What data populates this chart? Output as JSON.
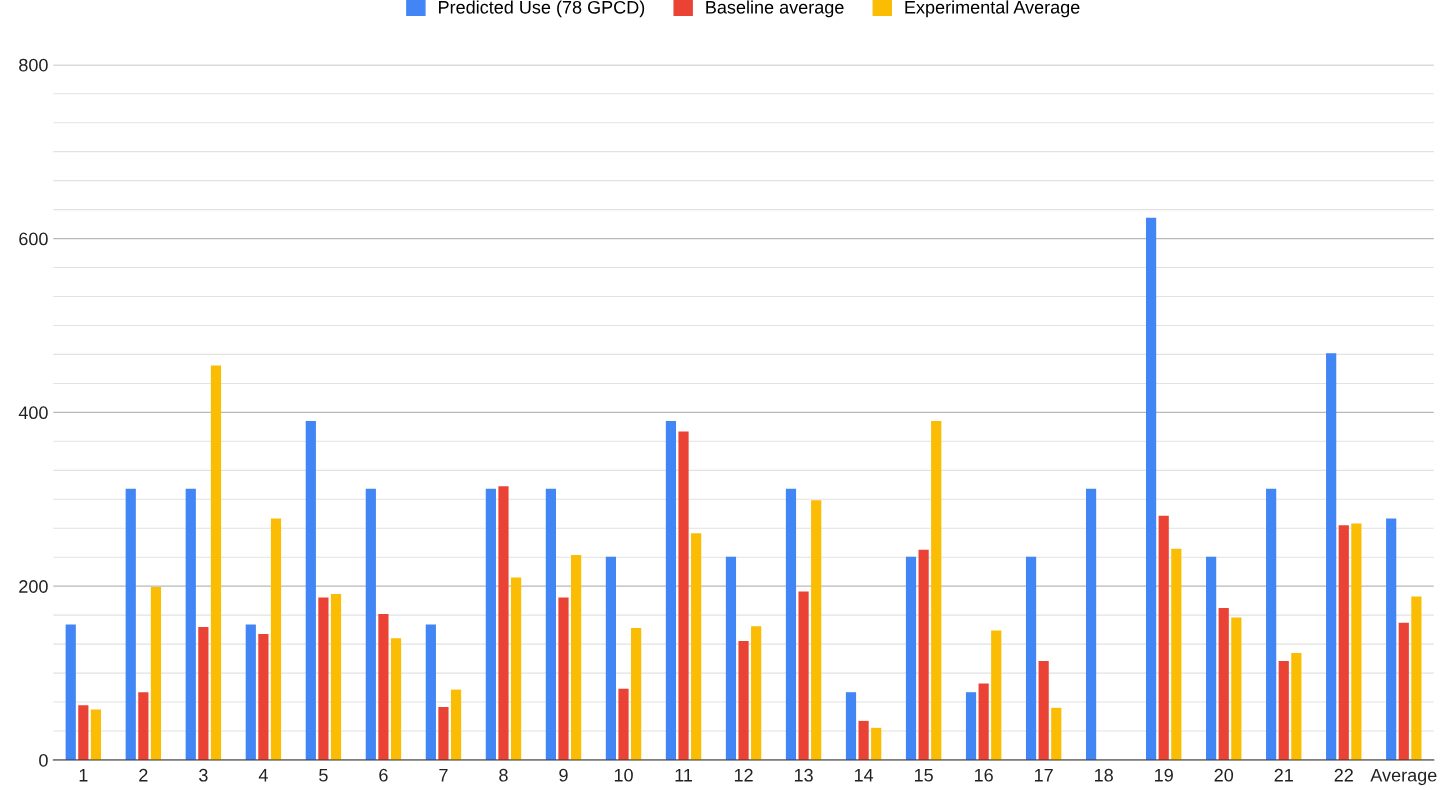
{
  "chart_data": {
    "type": "bar",
    "categories": [
      "1",
      "2",
      "3",
      "4",
      "5",
      "6",
      "7",
      "8",
      "9",
      "10",
      "11",
      "12",
      "13",
      "14",
      "15",
      "16",
      "17",
      "18",
      "19",
      "20",
      "21",
      "22",
      "Average"
    ],
    "series": [
      {
        "name": "Predicted Use (78 GPCD)",
        "color": "#4285f4",
        "values": [
          156,
          312,
          312,
          156,
          390,
          312,
          156,
          312,
          312,
          234,
          390,
          234,
          312,
          78,
          234,
          78,
          234,
          312,
          624,
          234,
          312,
          468,
          278
        ]
      },
      {
        "name": "Baseline average",
        "color": "#ea4335",
        "values": [
          63,
          78,
          153,
          145,
          187,
          168,
          61,
          315,
          187,
          82,
          378,
          137,
          194,
          45,
          242,
          88,
          114,
          null,
          281,
          175,
          114,
          270,
          158
        ]
      },
      {
        "name": "Experimental Average",
        "color": "#fbbc04",
        "values": [
          58,
          199,
          454,
          278,
          191,
          140,
          81,
          210,
          236,
          152,
          261,
          154,
          299,
          37,
          390,
          149,
          60,
          null,
          243,
          164,
          123,
          272,
          188
        ]
      }
    ],
    "ylim": [
      0,
      800
    ],
    "yticks": [
      0,
      {
        "value": 33.3,
        "label": null
      },
      {
        "value": 66.7,
        "label": null
      },
      {
        "value": 100,
        "label": null
      },
      {
        "value": 133.3,
        "label": null
      },
      {
        "value": 166.7,
        "label": null
      },
      200,
      {
        "value": 233.3,
        "label": null
      },
      {
        "value": 266.7,
        "label": null
      },
      {
        "value": 300,
        "label": null
      },
      {
        "value": 333.3,
        "label": null
      },
      {
        "value": 366.7,
        "label": null
      },
      400,
      {
        "value": 433.3,
        "label": null
      },
      {
        "value": 466.7,
        "label": null
      },
      {
        "value": 500,
        "label": null
      },
      {
        "value": 533.3,
        "label": null
      },
      {
        "value": 566.7,
        "label": null
      },
      600,
      {
        "value": 633.3,
        "label": null
      },
      {
        "value": 666.7,
        "label": null
      },
      {
        "value": 700,
        "label": null
      },
      {
        "value": 733.3,
        "label": null
      },
      {
        "value": 766.7,
        "label": null
      },
      800
    ],
    "grid": "y",
    "legend": "top"
  }
}
